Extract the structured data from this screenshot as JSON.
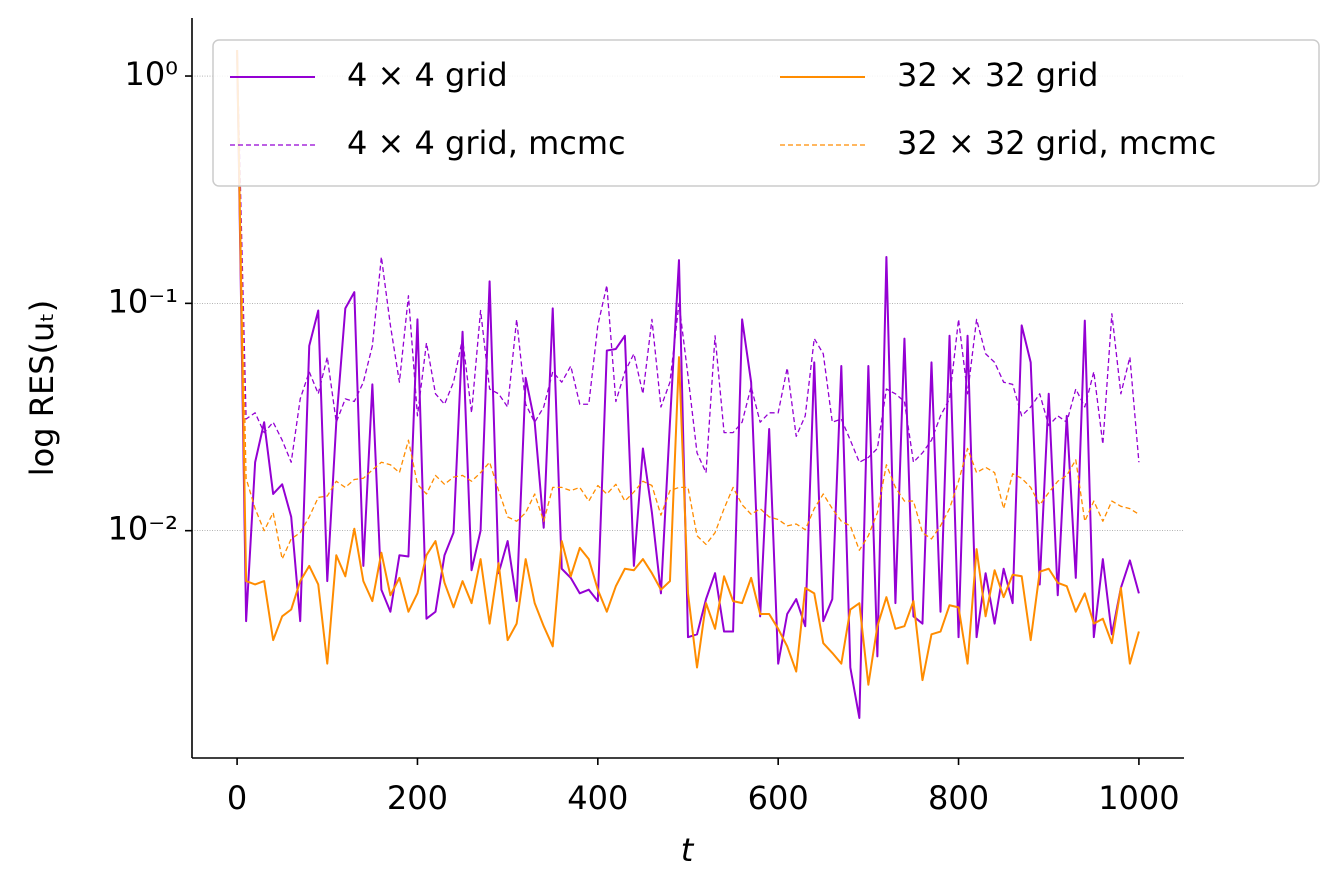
{
  "chart_data": {
    "type": "line",
    "xlabel": "t",
    "ylabel": "log RES(uₜ)",
    "x": [
      0,
      10,
      20,
      30,
      40,
      50,
      60,
      70,
      80,
      90,
      100,
      110,
      120,
      130,
      140,
      150,
      160,
      170,
      180,
      190,
      200,
      210,
      220,
      230,
      240,
      250,
      260,
      270,
      280,
      290,
      300,
      310,
      320,
      330,
      340,
      350,
      360,
      370,
      380,
      390,
      400,
      410,
      420,
      430,
      440,
      450,
      460,
      470,
      480,
      490,
      500,
      510,
      520,
      530,
      540,
      550,
      560,
      570,
      580,
      590,
      600,
      610,
      620,
      630,
      640,
      650,
      660,
      670,
      680,
      690,
      700,
      710,
      720,
      730,
      740,
      750,
      760,
      770,
      780,
      790,
      800,
      810,
      820,
      830,
      840,
      850,
      860,
      870,
      880,
      890,
      900,
      910,
      920,
      930,
      940,
      950,
      960,
      970,
      980,
      990,
      1000
    ],
    "xlim": [
      -50,
      1050
    ],
    "xticks": [
      0,
      200,
      400,
      600,
      800,
      1000
    ],
    "ylim": [
      0.001,
      1.8
    ],
    "log_y": true,
    "yticks": [
      {
        "value": 0.01,
        "label": "10⁻²"
      },
      {
        "value": 0.1,
        "label": "10⁻¹"
      },
      {
        "value": 1,
        "label": "10⁰"
      }
    ],
    "grid": true,
    "legend": "upper right",
    "series": [
      {
        "name": "4 × 4 grid",
        "color": "#9400d3",
        "linestyle": "solid",
        "values": [
          1.3,
          0.004,
          0.02,
          0.03,
          0.0145,
          0.016,
          0.0115,
          0.004,
          0.065,
          0.093,
          0.006,
          0.03,
          0.095,
          0.112,
          0.007,
          0.044,
          0.0055,
          0.0044,
          0.0078,
          0.0077,
          0.085,
          0.0041,
          0.0044,
          0.0078,
          0.0098,
          0.075,
          0.0067,
          0.01,
          0.125,
          0.0065,
          0.009,
          0.0049,
          0.047,
          0.03,
          0.0103,
          0.095,
          0.0068,
          0.0062,
          0.0053,
          0.0055,
          0.0049,
          0.062,
          0.063,
          0.072,
          0.007,
          0.023,
          0.012,
          0.0053,
          0.03,
          0.155,
          0.0034,
          0.0035,
          0.005,
          0.0065,
          0.0036,
          0.0036,
          0.085,
          0.045,
          0.0042,
          0.028,
          0.0026,
          0.0043,
          0.005,
          0.0038,
          0.055,
          0.004,
          0.005,
          0.053,
          0.0025,
          0.0015,
          0.053,
          0.0028,
          0.16,
          0.0048,
          0.07,
          0.0042,
          0.0039,
          0.055,
          0.0044,
          0.072,
          0.0034,
          0.072,
          0.0034,
          0.0065,
          0.0039,
          0.0068,
          0.0048,
          0.08,
          0.055,
          0.0058,
          0.04,
          0.0052,
          0.032,
          0.0062,
          0.084,
          0.0034,
          0.0075,
          0.0035,
          0.0056,
          0.0074,
          0.0053
        ]
      },
      {
        "name": "4 × 4 grid, mcmc",
        "color": "#9400d3",
        "linestyle": "dashed",
        "values": [
          1.3,
          0.031,
          0.033,
          0.027,
          0.03,
          0.025,
          0.02,
          0.038,
          0.05,
          0.04,
          0.058,
          0.03,
          0.038,
          0.037,
          0.045,
          0.065,
          0.16,
          0.08,
          0.045,
          0.108,
          0.032,
          0.067,
          0.04,
          0.036,
          0.045,
          0.07,
          0.033,
          0.093,
          0.042,
          0.04,
          0.035,
          0.085,
          0.036,
          0.03,
          0.035,
          0.05,
          0.045,
          0.053,
          0.036,
          0.036,
          0.08,
          0.12,
          0.037,
          0.05,
          0.06,
          0.04,
          0.085,
          0.035,
          0.045,
          0.1,
          0.048,
          0.022,
          0.018,
          0.072,
          0.027,
          0.027,
          0.03,
          0.043,
          0.03,
          0.033,
          0.033,
          0.052,
          0.026,
          0.032,
          0.07,
          0.06,
          0.03,
          0.031,
          0.025,
          0.02,
          0.021,
          0.023,
          0.042,
          0.04,
          0.037,
          0.02,
          0.022,
          0.025,
          0.032,
          0.038,
          0.085,
          0.04,
          0.085,
          0.06,
          0.055,
          0.045,
          0.044,
          0.032,
          0.035,
          0.04,
          0.029,
          0.032,
          0.03,
          0.042,
          0.035,
          0.05,
          0.024,
          0.09,
          0.04,
          0.058,
          0.02
        ]
      },
      {
        "name": "32 × 32 grid",
        "color": "#ff8c00",
        "linestyle": "solid",
        "values": [
          1.3,
          0.006,
          0.0058,
          0.006,
          0.0033,
          0.0042,
          0.0045,
          0.006,
          0.007,
          0.0058,
          0.0026,
          0.0078,
          0.0063,
          0.0102,
          0.006,
          0.0049,
          0.008,
          0.0052,
          0.0062,
          0.0044,
          0.0053,
          0.0078,
          0.009,
          0.0059,
          0.0046,
          0.006,
          0.0048,
          0.0075,
          0.0039,
          0.0072,
          0.0033,
          0.0039,
          0.0075,
          0.0048,
          0.0038,
          0.0031,
          0.009,
          0.0063,
          0.0084,
          0.0075,
          0.0055,
          0.0044,
          0.0057,
          0.0068,
          0.0067,
          0.0075,
          0.0065,
          0.0055,
          0.006,
          0.058,
          0.0053,
          0.0025,
          0.0048,
          0.0037,
          0.0063,
          0.0049,
          0.0048,
          0.0062,
          0.0043,
          0.0043,
          0.0037,
          0.0031,
          0.0024,
          0.0056,
          0.0053,
          0.0032,
          0.0029,
          0.0026,
          0.0045,
          0.0048,
          0.0021,
          0.0038,
          0.0051,
          0.0037,
          0.0038,
          0.0049,
          0.0022,
          0.0035,
          0.0036,
          0.0047,
          0.0046,
          0.0026,
          0.0083,
          0.0042,
          0.0067,
          0.0051,
          0.0064,
          0.0063,
          0.0033,
          0.0066,
          0.0068,
          0.0059,
          0.0057,
          0.0044,
          0.0053,
          0.0039,
          0.0041,
          0.0032,
          0.0056,
          0.0026,
          0.0036
        ]
      },
      {
        "name": "32 × 32 grid, mcmc",
        "color": "#ff8c00",
        "linestyle": "dashed",
        "values": [
          1.3,
          0.017,
          0.0125,
          0.01,
          0.012,
          0.0075,
          0.0092,
          0.0098,
          0.0115,
          0.014,
          0.0142,
          0.0165,
          0.0155,
          0.0168,
          0.017,
          0.0185,
          0.02,
          0.0195,
          0.018,
          0.025,
          0.016,
          0.0145,
          0.0175,
          0.016,
          0.0172,
          0.0175,
          0.0165,
          0.018,
          0.02,
          0.015,
          0.0115,
          0.011,
          0.012,
          0.0145,
          0.011,
          0.0155,
          0.0155,
          0.015,
          0.0155,
          0.0135,
          0.0158,
          0.0145,
          0.016,
          0.0135,
          0.0148,
          0.0165,
          0.0158,
          0.0117,
          0.015,
          0.0155,
          0.0155,
          0.0095,
          0.0087,
          0.0098,
          0.0125,
          0.0155,
          0.013,
          0.0118,
          0.0125,
          0.0115,
          0.0112,
          0.0105,
          0.0107,
          0.0101,
          0.0125,
          0.0145,
          0.0125,
          0.011,
          0.0105,
          0.0082,
          0.0095,
          0.012,
          0.0195,
          0.0155,
          0.0135,
          0.0135,
          0.0098,
          0.0092,
          0.0105,
          0.0125,
          0.0165,
          0.023,
          0.018,
          0.019,
          0.018,
          0.0125,
          0.0178,
          0.017,
          0.0155,
          0.013,
          0.0147,
          0.0165,
          0.0175,
          0.0205,
          0.011,
          0.0135,
          0.011,
          0.0135,
          0.0128,
          0.0125,
          0.0118
        ]
      }
    ]
  }
}
